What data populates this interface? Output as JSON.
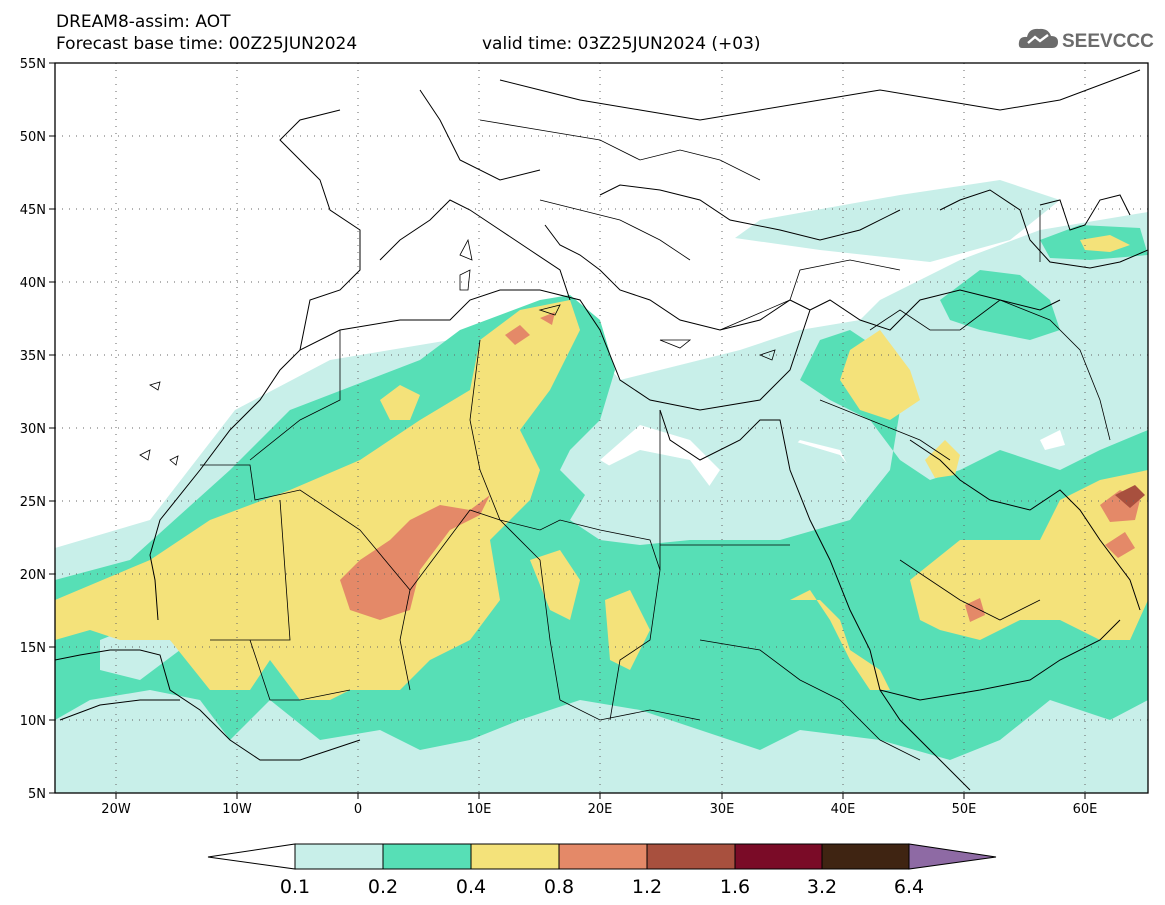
{
  "header": {
    "title_line1": "DREAM8-assim: AOT",
    "base_time": "Forecast base time: 00Z25JUN2024",
    "valid_time": "valid time: 03Z25JUN2024 (+03)"
  },
  "logo": {
    "text": "SEEVCCC",
    "icon": "cloud-icon"
  },
  "axes": {
    "lat_labels": [
      "55N",
      "50N",
      "45N",
      "40N",
      "35N",
      "30N",
      "25N",
      "20N",
      "15N",
      "10N",
      "5N"
    ],
    "lon_labels": [
      "20W",
      "10W",
      "0",
      "10E",
      "20E",
      "30E",
      "40E",
      "50E",
      "60E"
    ]
  },
  "colorbar": {
    "labels": [
      "0.1",
      "0.2",
      "0.4",
      "0.8",
      "1.2",
      "1.6",
      "3.2",
      "6.4"
    ],
    "colors": [
      "#ffffff",
      "#c8efe9",
      "#57dfb6",
      "#f4e27a",
      "#e48968",
      "#a8503e",
      "#7a0b27",
      "#3f2412",
      "#8e6aa4"
    ]
  },
  "colors": {
    "c1": "#c8efe9",
    "c2": "#57dfb6",
    "c3": "#f4e27a",
    "c4": "#e48968",
    "c5": "#a8503e"
  }
}
